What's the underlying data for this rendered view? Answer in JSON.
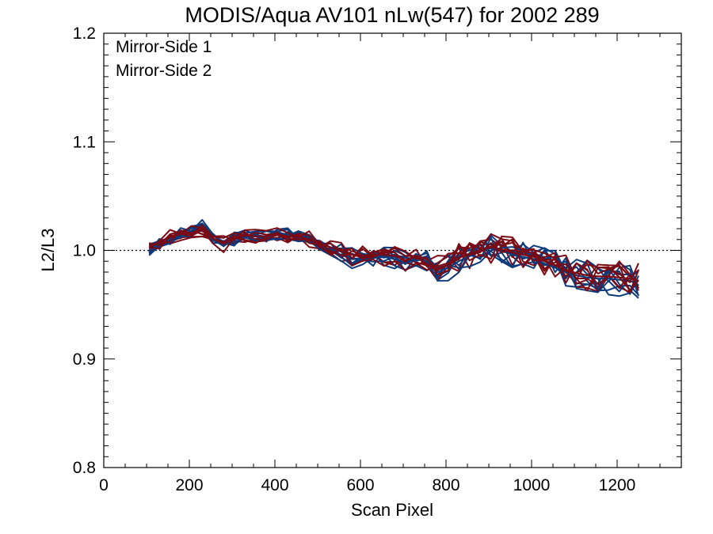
{
  "chart_data": {
    "type": "line",
    "title": "MODIS/Aqua AV101 nLw(547) for 2002 289",
    "xlabel": "Scan Pixel",
    "ylabel": "L2/L3",
    "xlim": [
      0,
      1350
    ],
    "ylim": [
      0.8,
      1.2
    ],
    "x_ticks": [
      0,
      200,
      400,
      600,
      800,
      1000,
      1200
    ],
    "x_tick_labels": [
      "0",
      "200",
      "400",
      "600",
      "800",
      "1000",
      "1200"
    ],
    "y_ticks": [
      0.8,
      0.9,
      1.0,
      1.1,
      1.2
    ],
    "y_tick_labels": [
      "0.8",
      "0.9",
      "1.0",
      "1.1",
      "1.2"
    ],
    "reference_line": 1.0,
    "legend_position": "top-left",
    "colors": {
      "mirror_side_1": "#0d3a7a",
      "mirror_side_2": "#7a0a14"
    },
    "x": [
      106,
      130,
      155,
      180,
      205,
      230,
      255,
      280,
      305,
      330,
      355,
      380,
      405,
      430,
      455,
      480,
      505,
      530,
      555,
      580,
      605,
      630,
      655,
      680,
      705,
      730,
      755,
      780,
      805,
      830,
      855,
      880,
      905,
      930,
      955,
      980,
      1005,
      1030,
      1055,
      1080,
      1105,
      1130,
      1155,
      1180,
      1205,
      1230,
      1250
    ],
    "series": [
      {
        "name": "Mirror-Side 1",
        "values": [
          0.999,
          1.006,
          1.01,
          1.014,
          1.018,
          1.021,
          1.01,
          1.004,
          1.01,
          1.013,
          1.013,
          1.012,
          1.014,
          1.014,
          1.012,
          1.009,
          1.004,
          1.0,
          0.996,
          0.992,
          0.992,
          0.993,
          0.994,
          0.992,
          0.988,
          0.992,
          0.99,
          0.98,
          0.984,
          0.99,
          0.995,
          0.999,
          1.002,
          1.0,
          0.996,
          0.994,
          0.992,
          0.988,
          0.984,
          0.98,
          0.977,
          0.975,
          0.974,
          0.974,
          0.973,
          0.972,
          0.968
        ]
      },
      {
        "name": "Mirror-Side 2",
        "values": [
          1.003,
          1.008,
          1.012,
          1.015,
          1.016,
          1.019,
          1.011,
          1.006,
          1.011,
          1.014,
          1.013,
          1.013,
          1.015,
          1.013,
          1.013,
          1.01,
          1.006,
          1.003,
          0.999,
          0.996,
          0.995,
          0.996,
          0.996,
          0.995,
          0.991,
          0.995,
          0.992,
          0.983,
          0.987,
          0.993,
          0.997,
          1.0,
          1.003,
          1.001,
          0.998,
          0.996,
          0.994,
          0.99,
          0.986,
          0.982,
          0.979,
          0.977,
          0.976,
          0.976,
          0.975,
          0.974,
          0.972
        ]
      }
    ]
  }
}
